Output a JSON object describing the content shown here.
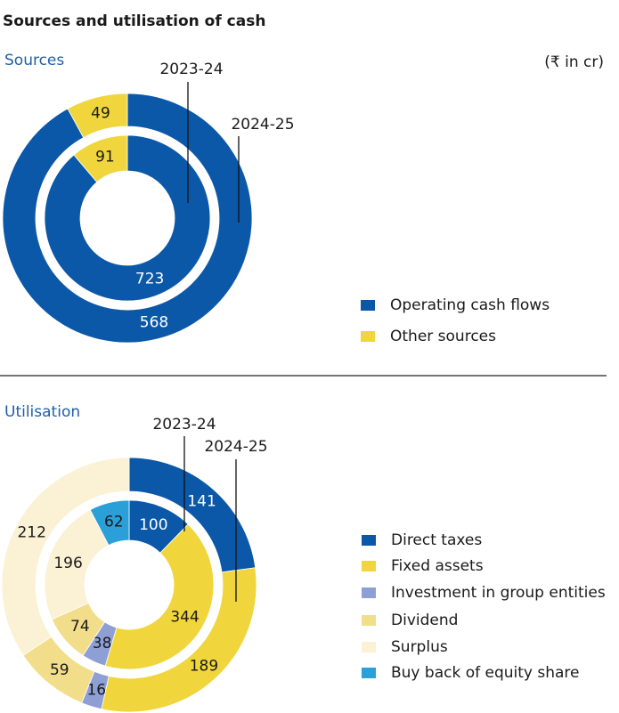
{
  "title": "Sources and utilisation of cash",
  "unit": "(₹ in cr)",
  "chart_data": [
    {
      "type": "donut",
      "title": "Sources",
      "categories": [
        "Operating cash flows",
        "Other sources"
      ],
      "colors": [
        "#0b57a8",
        "#f0d63c"
      ],
      "series": [
        {
          "name": "2024-25",
          "values": [
            568,
            49
          ]
        },
        {
          "name": "2023-24",
          "values": [
            723,
            91
          ]
        }
      ]
    },
    {
      "type": "donut",
      "title": "Utilisation",
      "categories": [
        "Direct taxes",
        "Fixed assets",
        "Investment in group entities",
        "Dividend",
        "Surplus",
        "Buy back of equity share"
      ],
      "colors": [
        "#0b57a8",
        "#f0d63c",
        "#8e9fd6",
        "#f2de8a",
        "#fbf1d4",
        "#2a9fd8"
      ],
      "series": [
        {
          "name": "2024-25",
          "values": [
            141,
            189,
            16,
            59,
            212,
            0
          ]
        },
        {
          "name": "2023-24",
          "values": [
            100,
            344,
            38,
            74,
            196,
            62
          ]
        }
      ]
    }
  ]
}
